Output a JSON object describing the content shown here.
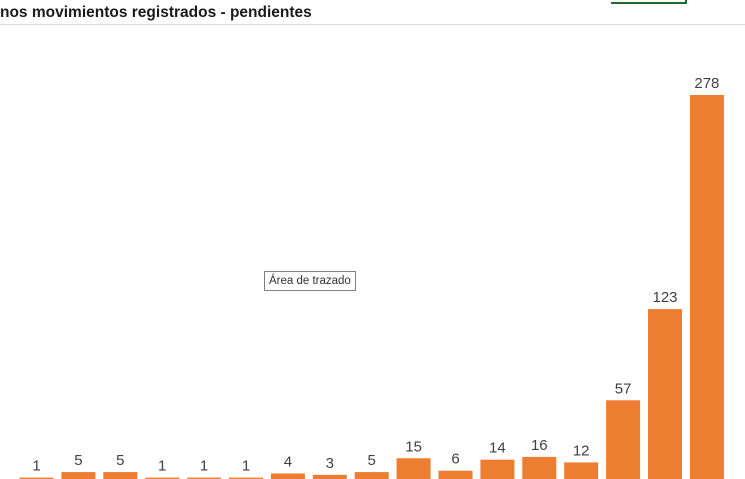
{
  "window": {
    "title": "nos movimientos registrados - pendientes"
  },
  "tooltip": {
    "text": "Área de trazado"
  },
  "colors": {
    "bar": "#ED7D31",
    "label": "#404040",
    "accent_green": "#1E6B2E"
  },
  "chart_data": {
    "type": "bar",
    "title": "nos movimientos registrados - pendientes",
    "categories": [
      "",
      "",
      "",
      "",
      "",
      "",
      "",
      "",
      "",
      "",
      "",
      "",
      "",
      "",
      "",
      "",
      ""
    ],
    "series": [
      {
        "values": [
          1,
          5,
          5,
          1,
          1,
          1,
          4,
          3,
          5,
          15,
          6,
          14,
          16,
          12,
          57,
          123,
          278
        ]
      }
    ],
    "data_labels": true,
    "grid": false,
    "legend": "none",
    "ylim": [
      0,
      278
    ]
  }
}
